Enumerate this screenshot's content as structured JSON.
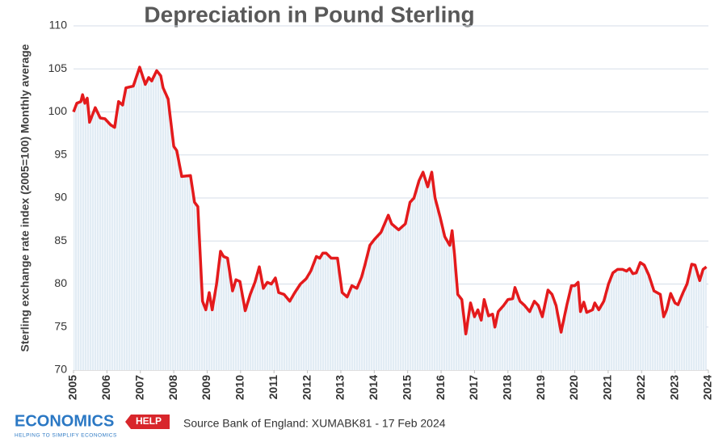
{
  "chart_data": {
    "type": "line",
    "title": "Depreciation in Pound Sterling",
    "y_label": "Sterling exchange rate index (2005=100) Monthly average",
    "source": "Source Bank of England: XUMABK81 - 17 Feb 2024",
    "logo": {
      "word": "ECONOMICS",
      "tag": "HELP",
      "tagline": "HELPING TO SIMPLIFY ECONOMICS"
    },
    "xlim": [
      2005,
      2024
    ],
    "xticks": [
      2005,
      2006,
      2007,
      2008,
      2009,
      2010,
      2011,
      2012,
      2013,
      2014,
      2015,
      2016,
      2017,
      2018,
      2019,
      2020,
      2021,
      2022,
      2023,
      2024
    ],
    "ylim": [
      70,
      110
    ],
    "yticks": [
      70,
      75,
      80,
      85,
      90,
      95,
      100,
      105,
      110
    ],
    "grid": true,
    "x": [
      2005.0,
      2005.1,
      2005.22,
      2005.27,
      2005.34,
      2005.41,
      2005.48,
      2005.65,
      2005.8,
      2005.94,
      2006.11,
      2006.23,
      2006.35,
      2006.47,
      2006.57,
      2006.79,
      2006.98,
      2007.15,
      2007.25,
      2007.34,
      2007.49,
      2007.61,
      2007.68,
      2007.83,
      2008.0,
      2008.09,
      2008.24,
      2008.5,
      2008.62,
      2008.72,
      2008.86,
      2008.96,
      2009.06,
      2009.15,
      2009.28,
      2009.4,
      2009.49,
      2009.61,
      2009.76,
      2009.86,
      2009.98,
      2010.14,
      2010.29,
      2010.43,
      2010.56,
      2010.68,
      2010.8,
      2010.92,
      2011.04,
      2011.14,
      2011.3,
      2011.47,
      2011.62,
      2011.79,
      2011.96,
      2012.1,
      2012.27,
      2012.37,
      2012.46,
      2012.56,
      2012.71,
      2012.9,
      2013.04,
      2013.19,
      2013.33,
      2013.48,
      2013.62,
      2013.72,
      2013.87,
      2014.01,
      2014.2,
      2014.42,
      2014.52,
      2014.73,
      2014.93,
      2015.07,
      2015.19,
      2015.34,
      2015.46,
      2015.6,
      2015.72,
      2015.82,
      2015.97,
      2016.11,
      2016.26,
      2016.33,
      2016.4,
      2016.5,
      2016.62,
      2016.74,
      2016.88,
      2017.0,
      2017.1,
      2017.2,
      2017.29,
      2017.42,
      2017.54,
      2017.61,
      2017.71,
      2017.87,
      2018.0,
      2018.14,
      2018.21,
      2018.36,
      2018.5,
      2018.65,
      2018.79,
      2018.91,
      2019.03,
      2019.2,
      2019.32,
      2019.44,
      2019.59,
      2019.76,
      2019.9,
      2020.0,
      2020.1,
      2020.17,
      2020.27,
      2020.36,
      2020.53,
      2020.6,
      2020.72,
      2020.87,
      2021.01,
      2021.14,
      2021.28,
      2021.43,
      2021.55,
      2021.64,
      2021.74,
      2021.84,
      2021.96,
      2022.08,
      2022.22,
      2022.37,
      2022.56,
      2022.66,
      2022.75,
      2022.87,
      2023.0,
      2023.09,
      2023.24,
      2023.36,
      2023.5,
      2023.6,
      2023.74,
      2023.84,
      2023.94
    ],
    "series": [
      {
        "color": "#e41a1c",
        "values": [
          100,
          101,
          101.2,
          102,
          101,
          101.6,
          98.8,
          100.5,
          99.3,
          99.2,
          98.5,
          98.2,
          101.2,
          100.8,
          102.8,
          103,
          105.2,
          103.2,
          104,
          103.6,
          104.8,
          104.2,
          102.8,
          101.5,
          96,
          95.5,
          92.5,
          92.6,
          89.5,
          89,
          78,
          77,
          79,
          77,
          80,
          83.8,
          83.2,
          83,
          79.2,
          80.5,
          80.3,
          76.9,
          78.8,
          80.2,
          82,
          79.5,
          80.2,
          80,
          80.7,
          79,
          78.8,
          78,
          79,
          80,
          80.6,
          81.5,
          83.2,
          83,
          83.6,
          83.6,
          83,
          83,
          79,
          78.5,
          79.8,
          79.5,
          80.8,
          82.2,
          84.5,
          85.2,
          86,
          88,
          87,
          86.3,
          87,
          89.5,
          90,
          92,
          93,
          91.3,
          93,
          90,
          87.8,
          85.5,
          84.5,
          86.2,
          83.5,
          78.8,
          78.2,
          74.2,
          77.8,
          76.2,
          77,
          75.8,
          78.2,
          76.3,
          76.5,
          75,
          76.8,
          77.5,
          78.2,
          78.3,
          79.6,
          78,
          77.5,
          76.8,
          78,
          77.5,
          76.2,
          79.3,
          78.8,
          77.5,
          74.4,
          77.5,
          79.8,
          79.8,
          80.2,
          76.8,
          77.9,
          76.7,
          77,
          77.8,
          77,
          78,
          80,
          81.3,
          81.7,
          81.7,
          81.5,
          81.8,
          81.2,
          81.3,
          82.5,
          82.2,
          81,
          79.2,
          78.8,
          76.2,
          77,
          78.9,
          77.8,
          77.6,
          79,
          80,
          82.3,
          82.2,
          80.4,
          81.7,
          82
        ]
      }
    ]
  }
}
